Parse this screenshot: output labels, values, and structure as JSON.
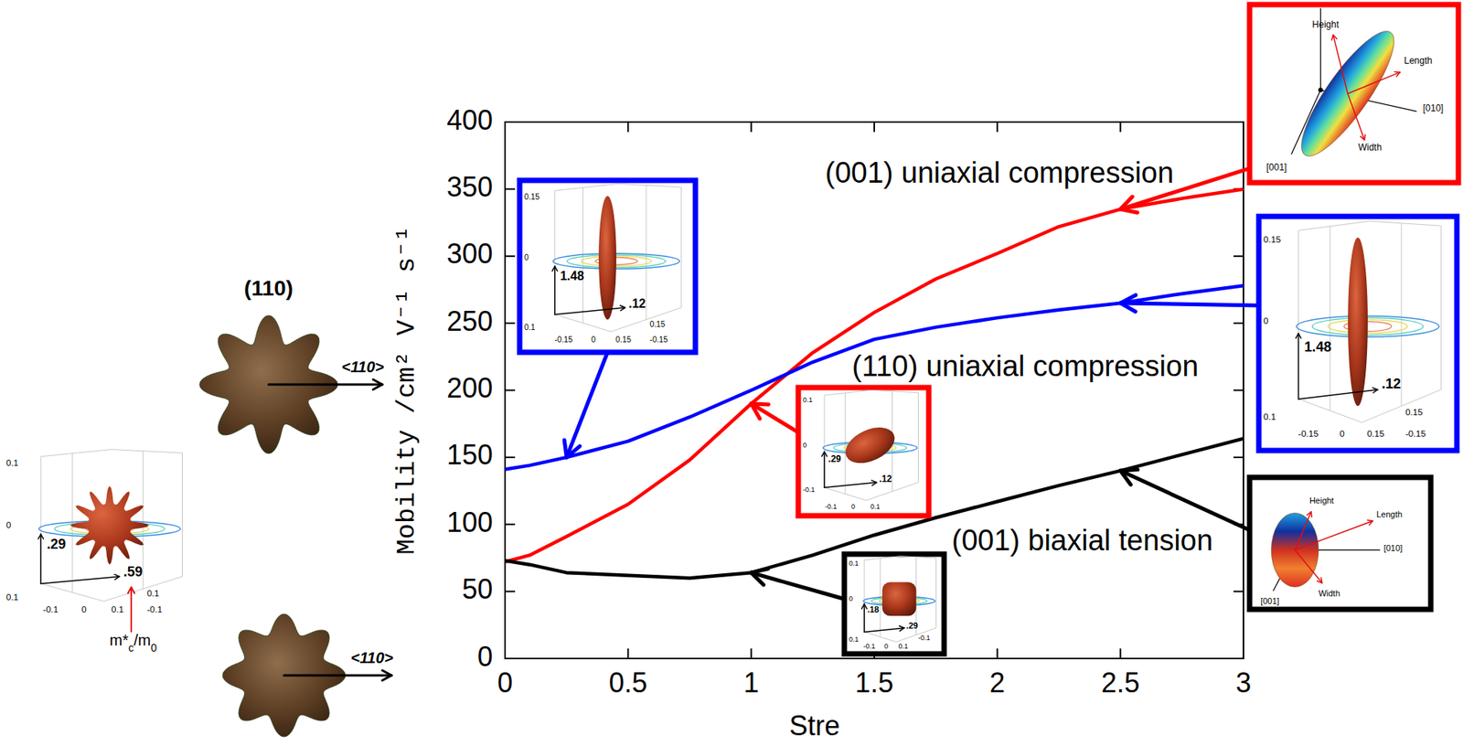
{
  "chart_data": {
    "type": "line",
    "x_label": "Stre",
    "y_label": "Mobility /cm² V⁻¹ s⁻¹",
    "x": [
      0,
      0.1,
      0.25,
      0.5,
      0.75,
      1,
      1.25,
      1.5,
      1.75,
      2,
      2.25,
      2.5,
      2.75,
      3
    ],
    "series": [
      {
        "name": "(001) uniaxial compression",
        "color": "#ff0000",
        "values": [
          72,
          77,
          91,
          115,
          148,
          190,
          228,
          258,
          283,
          302,
          322,
          335,
          343,
          350
        ]
      },
      {
        "name": "(110) uniaxial compression",
        "color": "#0000ff",
        "values": [
          141,
          144,
          150,
          162,
          180,
          200,
          221,
          238,
          247,
          254,
          260,
          265,
          272,
          278
        ]
      },
      {
        "name": "(001) biaxial tension",
        "color": "#000000",
        "values": [
          73,
          70,
          64,
          62,
          60,
          64,
          77,
          92,
          105,
          117,
          129,
          140,
          152,
          164
        ]
      }
    ],
    "xlim": [
      0,
      3
    ],
    "ylim": [
      0,
      400
    ],
    "xticks": [
      0,
      0.5,
      1,
      1.5,
      2,
      2.5,
      3
    ],
    "yticks": [
      0,
      50,
      100,
      150,
      200,
      250,
      300,
      350,
      400
    ],
    "grid": false,
    "insets": [
      {
        "v": "1.48",
        "h": ".12",
        "z_ticks": [
          "0.15",
          "0"
        ],
        "corner": "0.1",
        "x_ticks": [
          "-0.15",
          "0",
          "0.15"
        ],
        "y_ticks": [
          "0.15",
          "-0.15"
        ]
      },
      {
        "v": ".29",
        "h": ".12",
        "z_ticks": [
          "0.1",
          "0",
          "-0.1"
        ],
        "x_ticks": [
          "-0.1",
          "0",
          "0.1"
        ]
      },
      {
        "v": ".18",
        "h": ".29",
        "z_ticks": [
          "0.1",
          "0"
        ],
        "corner": "0.1",
        "x_ticks": [
          "-0.1",
          "0",
          "0.1"
        ],
        "y_ticks": [
          "-0.1"
        ]
      },
      {
        "v": "1.48",
        "h": ".12",
        "z_ticks": [
          "0.15",
          "0"
        ],
        "corner": "0.1",
        "x_ticks": [
          "-0.15",
          "0",
          "0.15"
        ],
        "y_ticks": [
          "0.15",
          "-0.15"
        ]
      },
      {
        "v": ".29",
        "h": ".59",
        "z_ticks": [
          "0.1",
          "0"
        ],
        "corner": "0.1",
        "x_ticks": [
          "-0.1",
          "0",
          "0.1"
        ],
        "y_ticks": [
          "0.1",
          "-0.1"
        ],
        "caption": "m*c/m0"
      }
    ],
    "orientation_insets": [
      {
        "labels": [
          "Height",
          "Length",
          "Width",
          "[010]",
          "[001]"
        ]
      },
      {
        "labels": [
          "Height",
          "Length",
          "Width",
          "[010]",
          "[001]"
        ]
      }
    ],
    "left_figure": {
      "title": "(110)",
      "directions": [
        "<110>",
        "<110>"
      ]
    }
  }
}
